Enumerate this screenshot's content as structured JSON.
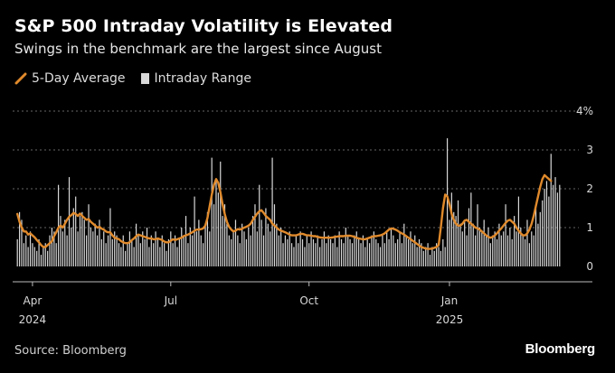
{
  "title": "S&P 500 Intraday Volatility is Elevated",
  "subtitle": "Swings in the benchmark are the largest since August",
  "legend": {
    "line_label": "5-Day Average",
    "bar_label": "Intraday Range"
  },
  "source": "Source: Bloomberg",
  "brand": "Bloomberg",
  "colors": {
    "line": "#e08a2c",
    "bars": "#d9d9d9",
    "grid": "#666666",
    "background": "#000000"
  },
  "chart_data": {
    "type": "bar",
    "title": "S&P 500 Intraday Volatility is Elevated",
    "xlabel": "",
    "ylabel": "",
    "ylim": [
      0,
      4
    ],
    "y_ticks": [
      {
        "value": 0,
        "label": "0"
      },
      {
        "value": 1,
        "label": "1"
      },
      {
        "value": 2,
        "label": "2"
      },
      {
        "value": 3,
        "label": "3"
      },
      {
        "value": 4,
        "label": "4%"
      }
    ],
    "x_ticks": [
      {
        "index": 7,
        "label": "Apr",
        "year": "2024"
      },
      {
        "index": 71,
        "label": "Jul",
        "year": ""
      },
      {
        "index": 135,
        "label": "Oct",
        "year": ""
      },
      {
        "index": 200,
        "label": "Jan",
        "year": "2025"
      }
    ],
    "series": [
      {
        "name": "Intraday Range",
        "type": "bar",
        "values": [
          0.7,
          1.4,
          1.2,
          0.6,
          0.8,
          0.5,
          0.9,
          0.6,
          0.5,
          0.4,
          0.7,
          0.3,
          0.5,
          0.6,
          0.4,
          0.8,
          1.0,
          0.9,
          0.6,
          2.1,
          1.3,
          0.9,
          1.2,
          0.8,
          2.3,
          1.0,
          1.5,
          1.8,
          0.9,
          1.3,
          1.4,
          1.2,
          0.8,
          1.6,
          1.0,
          0.9,
          1.1,
          0.8,
          1.2,
          0.7,
          0.9,
          0.6,
          0.8,
          1.5,
          0.7,
          0.9,
          0.8,
          0.6,
          0.5,
          0.8,
          0.4,
          0.6,
          0.9,
          0.7,
          0.5,
          1.1,
          0.8,
          0.6,
          0.9,
          0.7,
          1.0,
          0.5,
          0.8,
          0.6,
          0.9,
          0.7,
          0.5,
          0.8,
          0.6,
          0.4,
          0.7,
          0.9,
          0.6,
          0.8,
          0.5,
          0.7,
          1.0,
          0.8,
          1.3,
          0.6,
          1.0,
          0.8,
          1.8,
          0.9,
          1.2,
          0.8,
          0.6,
          1.1,
          1.4,
          0.9,
          2.8,
          1.6,
          2.2,
          1.9,
          2.7,
          1.3,
          1.6,
          1.1,
          0.8,
          0.7,
          0.9,
          1.2,
          0.8,
          0.6,
          1.1,
          0.9,
          0.7,
          1.0,
          0.8,
          1.3,
          1.6,
          0.9,
          2.1,
          1.2,
          0.8,
          1.5,
          1.1,
          0.9,
          2.8,
          1.6,
          1.1,
          0.8,
          1.0,
          0.6,
          0.8,
          0.7,
          0.9,
          0.6,
          0.5,
          0.8,
          0.6,
          0.9,
          0.7,
          0.5,
          0.8,
          0.6,
          0.9,
          0.7,
          0.6,
          0.8,
          0.5,
          0.7,
          0.9,
          0.6,
          0.8,
          0.7,
          0.6,
          0.8,
          0.5,
          0.9,
          0.7,
          0.6,
          1.0,
          0.8,
          0.7,
          0.6,
          0.8,
          0.9,
          0.7,
          0.6,
          0.8,
          0.5,
          0.7,
          0.6,
          0.8,
          0.9,
          0.7,
          0.6,
          0.5,
          0.8,
          0.6,
          0.9,
          0.7,
          1.0,
          0.8,
          0.6,
          0.7,
          0.9,
          0.6,
          1.1,
          0.8,
          0.7,
          0.9,
          0.6,
          0.8,
          0.5,
          0.7,
          0.6,
          0.4,
          0.5,
          0.6,
          0.3,
          0.5,
          0.4,
          0.6,
          0.5,
          0.4,
          0.7,
          0.5,
          3.3,
          1.2,
          1.9,
          1.4,
          1.3,
          1.7,
          1.1,
          0.9,
          1.2,
          0.8,
          1.5,
          1.9,
          1.1,
          0.8,
          1.6,
          1.0,
          0.9,
          1.2,
          0.8,
          1.0,
          0.6,
          0.8,
          0.9,
          0.7,
          1.1,
          0.8,
          0.9,
          1.6,
          0.8,
          1.0,
          0.7,
          1.3,
          0.9,
          1.8,
          1.0,
          0.8,
          0.7,
          1.2,
          0.6,
          0.9,
          0.8,
          1.5,
          1.1,
          1.4,
          1.7,
          2.0,
          2.2,
          1.8,
          2.9,
          2.1,
          2.3,
          1.9,
          2.1
        ],
        "color": "#d9d9d9"
      },
      {
        "name": "5-Day Average",
        "type": "line",
        "values": [
          1.35,
          1.15,
          1.0,
          0.9,
          0.9,
          0.82,
          0.85,
          0.8,
          0.75,
          0.68,
          0.62,
          0.55,
          0.5,
          0.5,
          0.55,
          0.6,
          0.65,
          0.78,
          0.88,
          1.0,
          1.05,
          1.0,
          1.1,
          1.2,
          1.28,
          1.32,
          1.38,
          1.35,
          1.3,
          1.36,
          1.3,
          1.25,
          1.2,
          1.22,
          1.15,
          1.1,
          1.05,
          1.0,
          1.02,
          0.97,
          0.95,
          0.9,
          0.88,
          0.88,
          0.8,
          0.74,
          0.72,
          0.7,
          0.65,
          0.62,
          0.6,
          0.6,
          0.62,
          0.68,
          0.72,
          0.78,
          0.82,
          0.8,
          0.78,
          0.76,
          0.74,
          0.72,
          0.72,
          0.7,
          0.7,
          0.72,
          0.7,
          0.68,
          0.64,
          0.62,
          0.62,
          0.66,
          0.7,
          0.68,
          0.7,
          0.72,
          0.74,
          0.78,
          0.8,
          0.82,
          0.85,
          0.88,
          0.92,
          0.95,
          0.95,
          0.96,
          0.98,
          1.05,
          1.25,
          1.55,
          1.85,
          2.1,
          2.25,
          2.15,
          1.9,
          1.6,
          1.35,
          1.15,
          1.02,
          0.95,
          0.9,
          0.92,
          0.96,
          0.95,
          0.97,
          1.0,
          1.02,
          1.05,
          1.1,
          1.2,
          1.28,
          1.36,
          1.42,
          1.45,
          1.38,
          1.3,
          1.25,
          1.2,
          1.1,
          1.05,
          1.0,
          0.95,
          0.92,
          0.9,
          0.88,
          0.85,
          0.82,
          0.8,
          0.8,
          0.8,
          0.82,
          0.84,
          0.84,
          0.82,
          0.8,
          0.8,
          0.79,
          0.78,
          0.78,
          0.76,
          0.75,
          0.74,
          0.74,
          0.74,
          0.74,
          0.74,
          0.75,
          0.76,
          0.77,
          0.78,
          0.78,
          0.78,
          0.79,
          0.79,
          0.79,
          0.78,
          0.76,
          0.74,
          0.72,
          0.71,
          0.7,
          0.7,
          0.72,
          0.74,
          0.76,
          0.78,
          0.78,
          0.79,
          0.8,
          0.82,
          0.85,
          0.9,
          0.95,
          0.98,
          0.97,
          0.95,
          0.92,
          0.88,
          0.85,
          0.82,
          0.78,
          0.74,
          0.7,
          0.66,
          0.62,
          0.58,
          0.54,
          0.5,
          0.48,
          0.46,
          0.45,
          0.45,
          0.46,
          0.48,
          0.5,
          0.55,
          1.0,
          1.5,
          1.85,
          1.8,
          1.6,
          1.35,
          1.2,
          1.1,
          1.05,
          1.05,
          1.1,
          1.18,
          1.2,
          1.15,
          1.1,
          1.05,
          1.0,
          0.98,
          0.95,
          0.9,
          0.85,
          0.8,
          0.76,
          0.74,
          0.76,
          0.8,
          0.85,
          0.92,
          0.98,
          1.05,
          1.12,
          1.18,
          1.2,
          1.15,
          1.1,
          1.0,
          0.92,
          0.85,
          0.8,
          0.8,
          0.85,
          0.95,
          1.1,
          1.3,
          1.55,
          1.8,
          2.05,
          2.25,
          2.35,
          2.3,
          2.25,
          2.2
        ],
        "color": "#e08a2c"
      }
    ]
  }
}
